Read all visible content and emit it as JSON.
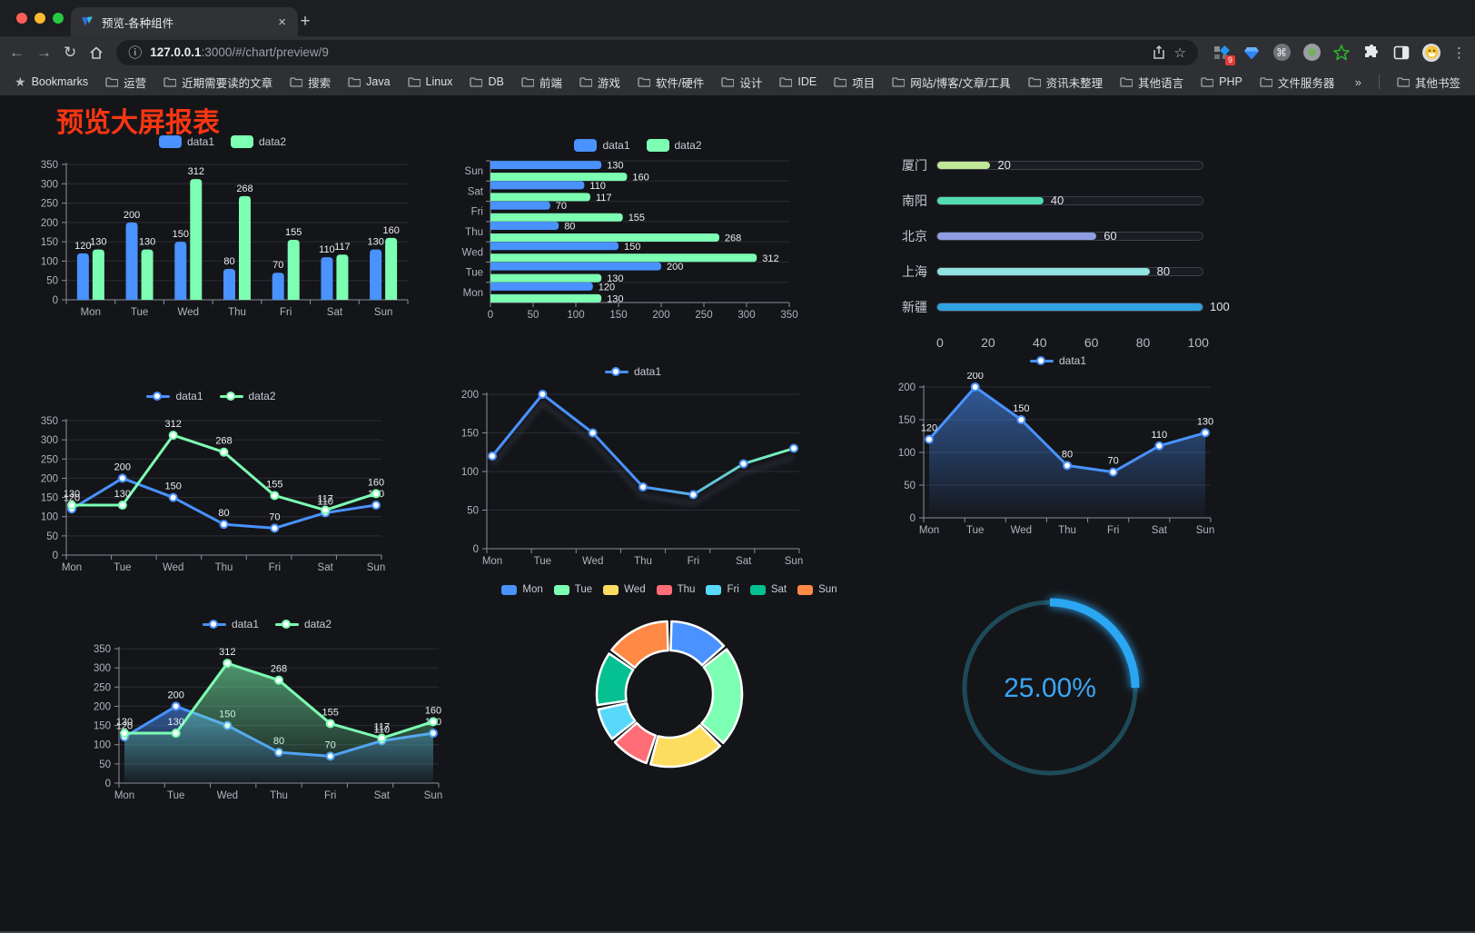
{
  "browser": {
    "traffic_colors": {
      "close": "#ff5f57",
      "minimize": "#febc2e",
      "zoom": "#28c840"
    },
    "tab": {
      "title": "预览-各种组件",
      "close_glyph": "×",
      "new_tab_glyph": "+"
    },
    "toolbar": {
      "back_glyph": "←",
      "forward_glyph": "→",
      "reload_glyph": "↻",
      "info_glyph": "ⓘ",
      "url_host": "127.0.0.1",
      "url_rest": ":3000/#/chart/preview/9",
      "star_glyph": "☆",
      "command_glyph": "⌘",
      "ext_badge": "9",
      "kebab_glyph": "⋮"
    },
    "bookmarks": {
      "star_glyph": "★",
      "label": "Bookmarks",
      "items": [
        "运营",
        "近期需要读的文章",
        "搜索",
        "Java",
        "Linux",
        "DB",
        "前端",
        "游戏",
        "软件/硬件",
        "设计",
        "IDE",
        "项目",
        "网站/博客/文章/工具",
        "资讯未整理",
        "其他语言",
        "PHP",
        "文件服务器"
      ],
      "overflow_glyph": "»",
      "other_label": "其他书签"
    }
  },
  "page": {
    "title": "预览大屏报表"
  },
  "chart_data": [
    {
      "type": "bar",
      "legend_position": "top",
      "grid": true,
      "categories": [
        "Mon",
        "Tue",
        "Wed",
        "Thu",
        "Fri",
        "Sat",
        "Sun"
      ],
      "series": [
        {
          "name": "data1",
          "color": "#4992ff",
          "values": [
            120,
            200,
            150,
            80,
            70,
            110,
            130
          ]
        },
        {
          "name": "data2",
          "color": "#7cffb2",
          "values": [
            130,
            130,
            312,
            268,
            155,
            117,
            160
          ]
        }
      ],
      "ylim": [
        0,
        350
      ],
      "yticks": [
        0,
        50,
        100,
        150,
        200,
        250,
        300,
        350
      ],
      "value_labels": true
    },
    {
      "type": "hbar",
      "legend_position": "top",
      "grid": true,
      "categories_top_to_bottom": [
        "Sun",
        "Sat",
        "Fri",
        "Thu",
        "Wed",
        "Tue",
        "Mon"
      ],
      "series": [
        {
          "name": "data1",
          "color": "#4992ff",
          "values": [
            130,
            110,
            70,
            80,
            150,
            200,
            120
          ]
        },
        {
          "name": "data2",
          "color": "#7cffb2",
          "values": [
            160,
            117,
            155,
            268,
            312,
            130,
            130
          ]
        }
      ],
      "xlim": [
        0,
        350
      ],
      "xticks": [
        0,
        50,
        100,
        150,
        200,
        250,
        300,
        350
      ],
      "value_labels": true
    },
    {
      "type": "progress",
      "items": [
        {
          "label": "厦门",
          "value": 20,
          "color": "#c0e897"
        },
        {
          "label": "南阳",
          "value": 40,
          "color": "#52dcb0"
        },
        {
          "label": "北京",
          "value": 60,
          "color": "#8f9ee3"
        },
        {
          "label": "上海",
          "value": 80,
          "color": "#90e3e0"
        },
        {
          "label": "新疆",
          "value": 100,
          "color": "#31a2e0"
        }
      ],
      "max": 100,
      "xticks": [
        0,
        20,
        40,
        60,
        80,
        100
      ]
    },
    {
      "type": "line",
      "legend_position": "top",
      "grid": true,
      "categories": [
        "Mon",
        "Tue",
        "Wed",
        "Thu",
        "Fri",
        "Sat",
        "Sun"
      ],
      "series": [
        {
          "name": "data1",
          "color": "#4992ff",
          "values": [
            120,
            200,
            150,
            80,
            70,
            110,
            130
          ]
        },
        {
          "name": "data2",
          "color": "#7cffb2",
          "values": [
            130,
            130,
            312,
            268,
            155,
            117,
            160
          ]
        }
      ],
      "ylim": [
        0,
        350
      ],
      "yticks": [
        0,
        50,
        100,
        150,
        200,
        250,
        300,
        350
      ],
      "value_labels": true
    },
    {
      "type": "line",
      "legend_position": "top",
      "grid": true,
      "shadow": true,
      "categories": [
        "Mon",
        "Tue",
        "Wed",
        "Thu",
        "Fri",
        "Sat",
        "Sun"
      ],
      "series": [
        {
          "name": "data1",
          "color": "#4992ff",
          "gradient": [
            "#4992ff",
            "#4992ff",
            "#7cffb2"
          ],
          "values": [
            120,
            200,
            150,
            80,
            70,
            110,
            130
          ]
        }
      ],
      "ylim": [
        0,
        200
      ],
      "yticks": [
        0,
        50,
        100,
        150,
        200
      ],
      "value_labels": false
    },
    {
      "type": "line",
      "legend_position": "top",
      "grid": true,
      "categories": [
        "Mon",
        "Tue",
        "Wed",
        "Thu",
        "Fri",
        "Sat",
        "Sun"
      ],
      "series": [
        {
          "name": "data1",
          "color": "#4992ff",
          "area": true,
          "values": [
            120,
            200,
            150,
            80,
            70,
            110,
            130
          ]
        }
      ],
      "ylim": [
        0,
        200
      ],
      "yticks": [
        0,
        50,
        100,
        150,
        200
      ],
      "value_labels": true
    },
    {
      "type": "line",
      "legend_position": "top",
      "grid": true,
      "categories": [
        "Mon",
        "Tue",
        "Wed",
        "Thu",
        "Fri",
        "Sat",
        "Sun"
      ],
      "series": [
        {
          "name": "data1",
          "color": "#4992ff",
          "area": true,
          "values": [
            120,
            200,
            150,
            80,
            70,
            110,
            130
          ]
        },
        {
          "name": "data2",
          "color": "#7cffb2",
          "area": true,
          "values": [
            130,
            130,
            312,
            268,
            155,
            117,
            160
          ]
        }
      ],
      "ylim": [
        0,
        350
      ],
      "yticks": [
        0,
        50,
        100,
        150,
        200,
        250,
        300,
        350
      ],
      "value_labels": true
    },
    {
      "type": "donut",
      "legend_position": "top",
      "inner_radius": 48,
      "outer_radius": 80,
      "items": [
        {
          "label": "Mon",
          "value": 120,
          "color": "#4992ff"
        },
        {
          "label": "Tue",
          "value": 200,
          "color": "#7cffb2"
        },
        {
          "label": "Wed",
          "value": 150,
          "color": "#fddd60"
        },
        {
          "label": "Thu",
          "value": 80,
          "color": "#ff6e76"
        },
        {
          "label": "Fri",
          "value": 70,
          "color": "#58d9f9"
        },
        {
          "label": "Sat",
          "value": 110,
          "color": "#05c091"
        },
        {
          "label": "Sun",
          "value": 130,
          "color": "#ff8a45"
        }
      ]
    },
    {
      "type": "gauge",
      "value": 25,
      "text": "25.00%",
      "progress_color": "#2ba6f2",
      "track_color": "#1d4a59",
      "text_color": "#3aa7f2"
    }
  ]
}
